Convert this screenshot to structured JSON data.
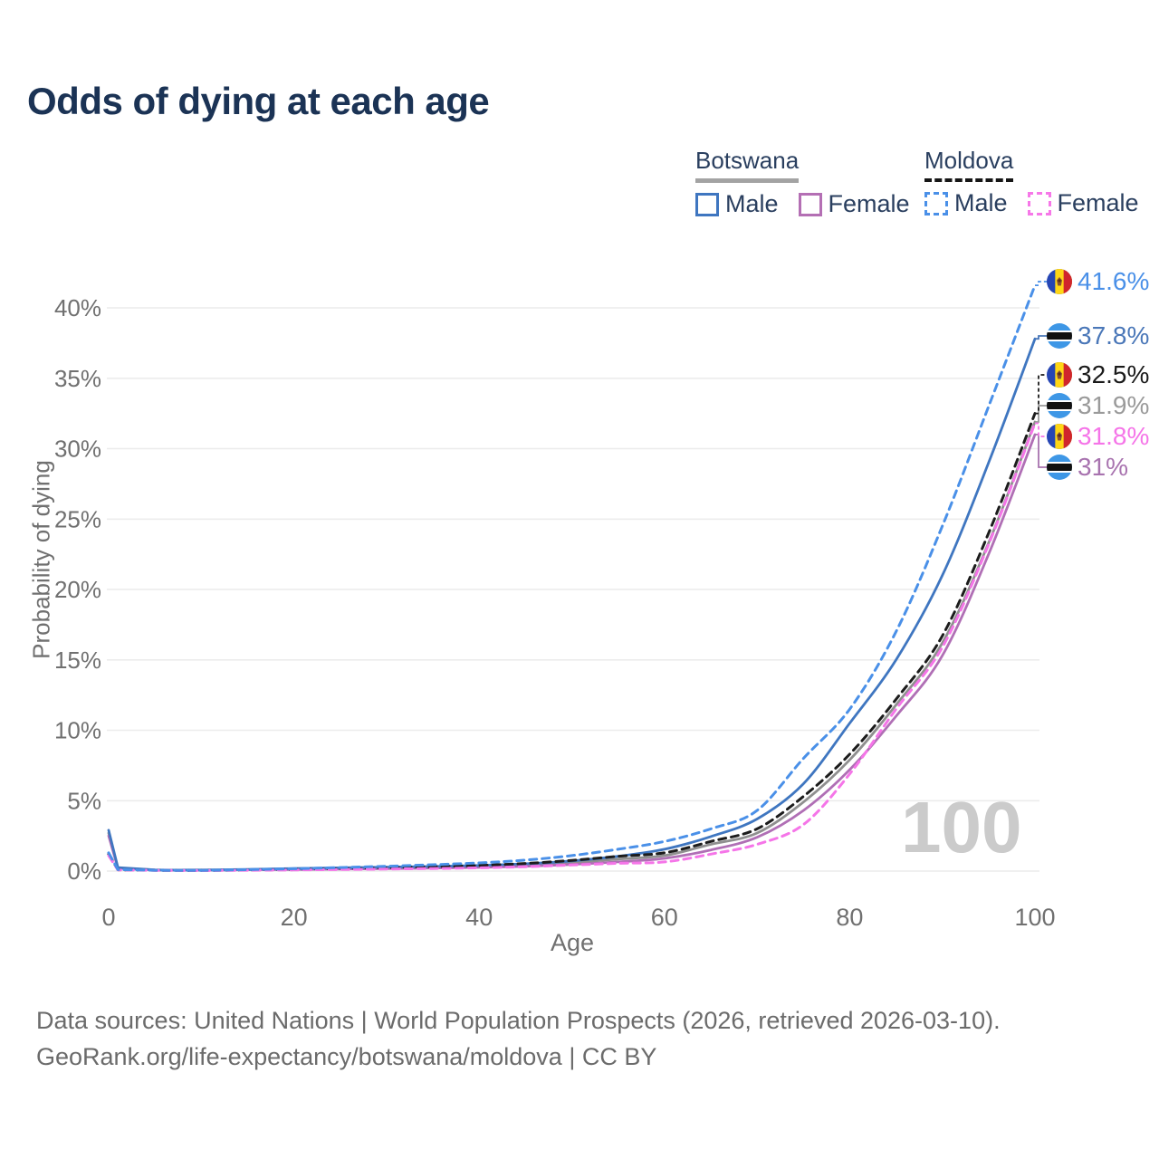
{
  "title": "Odds of dying at each age",
  "legend": {
    "groups": [
      {
        "name": "Botswana",
        "style": "solid",
        "underline_color": "#a3a3a3",
        "items": [
          {
            "label": "Male",
            "color": "#3f76c0",
            "dashed": false
          },
          {
            "label": "Female",
            "color": "#b46fb4",
            "dashed": false
          }
        ]
      },
      {
        "name": "Moldova",
        "style": "dashed",
        "underline_color": "#161616",
        "items": [
          {
            "label": "Male",
            "color": "#4a90e8",
            "dashed": true
          },
          {
            "label": "Female",
            "color": "#f678e8",
            "dashed": true
          }
        ]
      }
    ]
  },
  "watermark": "100",
  "footer": {
    "line1": "Data sources: United Nations | World Population Prospects (2026, retrieved 2026-03-10).",
    "line2": "GeoRank.org/life-expectancy/botswana/moldova | CC BY"
  },
  "chart_data": {
    "type": "line",
    "title": "Odds of dying at each age",
    "xlabel": "Age",
    "ylabel": "Probability of dying",
    "xlim": [
      0,
      100
    ],
    "ylim": [
      0,
      42
    ],
    "grid": "horizontal",
    "legend_position": "top-right",
    "x_ticks": [
      "0",
      "20",
      "40",
      "60",
      "80",
      "100"
    ],
    "x_tick_values": [
      0,
      20,
      40,
      60,
      80,
      100
    ],
    "y_ticks": [
      "0%",
      "5%",
      "10%",
      "15%",
      "20%",
      "25%",
      "30%",
      "35%",
      "40%"
    ],
    "y_tick_values": [
      0,
      5,
      10,
      15,
      20,
      25,
      30,
      35,
      40
    ],
    "ages": [
      0,
      1,
      5,
      10,
      15,
      20,
      25,
      30,
      35,
      40,
      45,
      50,
      55,
      60,
      65,
      70,
      75,
      80,
      85,
      90,
      95,
      100
    ],
    "series": [
      {
        "name": "botswana_total",
        "country": "Botswana",
        "sex": "Both",
        "flag": "botswana",
        "color": "#8f8f8f",
        "dashed": false,
        "end_label": "31.9%",
        "label_color": "#9a9a9a",
        "values": [
          2.7,
          0.22,
          0.08,
          0.07,
          0.1,
          0.15,
          0.18,
          0.23,
          0.27,
          0.33,
          0.43,
          0.6,
          0.85,
          1.1,
          1.9,
          2.7,
          4.9,
          7.9,
          11.8,
          16.2,
          23.3,
          31.9
        ]
      },
      {
        "name": "botswana_female",
        "country": "Botswana",
        "sex": "Female",
        "flag": "botswana",
        "color": "#b06fb5",
        "dashed": false,
        "end_label": "31%",
        "label_color": "#a873af",
        "values": [
          2.5,
          0.2,
          0.07,
          0.06,
          0.09,
          0.11,
          0.14,
          0.17,
          0.21,
          0.26,
          0.34,
          0.47,
          0.65,
          0.9,
          1.5,
          2.4,
          4.3,
          7.2,
          11.0,
          15.3,
          22.5,
          31.0
        ]
      },
      {
        "name": "botswana_male",
        "country": "Botswana",
        "sex": "Male",
        "flag": "botswana",
        "color": "#3f76c0",
        "dashed": false,
        "end_label": "37.8%",
        "label_color": "#4a77b8",
        "values": [
          2.9,
          0.25,
          0.09,
          0.08,
          0.12,
          0.18,
          0.23,
          0.28,
          0.33,
          0.4,
          0.52,
          0.72,
          1.05,
          1.55,
          2.45,
          3.7,
          6.2,
          10.5,
          15.0,
          21.0,
          29.0,
          37.8
        ]
      },
      {
        "name": "moldova_total",
        "country": "Moldova",
        "sex": "Both",
        "flag": "moldova",
        "color": "#1c1c1c",
        "dashed": true,
        "end_label": "32.5%",
        "label_color": "#1a1a1a",
        "values": [
          1.2,
          0.09,
          0.055,
          0.045,
          0.08,
          0.13,
          0.18,
          0.24,
          0.31,
          0.4,
          0.54,
          0.76,
          1.05,
          1.3,
          2.1,
          3.0,
          5.3,
          8.3,
          12.2,
          16.7,
          24.0,
          32.5
        ]
      },
      {
        "name": "moldova_female",
        "country": "Moldova",
        "sex": "Female",
        "flag": "moldova",
        "color": "#f575e8",
        "dashed": true,
        "end_label": "31.8%",
        "label_color": "#f575e8",
        "values": [
          1.1,
          0.08,
          0.05,
          0.04,
          0.06,
          0.08,
          0.11,
          0.14,
          0.18,
          0.23,
          0.31,
          0.43,
          0.55,
          0.65,
          1.2,
          1.9,
          3.3,
          6.9,
          11.5,
          15.9,
          23.2,
          31.8
        ]
      },
      {
        "name": "moldova_male",
        "country": "Moldova",
        "sex": "Male",
        "flag": "moldova",
        "color": "#4a90e8",
        "dashed": true,
        "end_label": "41.6%",
        "label_color": "#4a90e8",
        "values": [
          1.3,
          0.1,
          0.06,
          0.05,
          0.1,
          0.17,
          0.25,
          0.34,
          0.45,
          0.58,
          0.78,
          1.1,
          1.55,
          2.1,
          3.0,
          4.3,
          8.0,
          11.5,
          17.0,
          24.5,
          33.0,
          41.6
        ]
      }
    ]
  }
}
